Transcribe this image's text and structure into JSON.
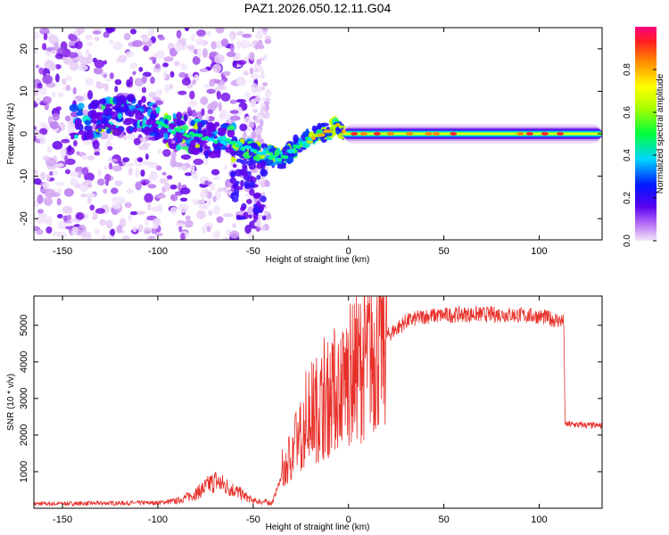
{
  "title": "PAZ1.2026.050.12.11.G04",
  "chart_data": [
    {
      "type": "heatmap",
      "xlabel": "Height of straight line (km)",
      "ylabel": "Frequency (Hz)",
      "xlim": [
        -165,
        133
      ],
      "ylim": [
        -25,
        25
      ],
      "xticks": [
        -150,
        -100,
        -50,
        0,
        50,
        100
      ],
      "yticks": [
        -20,
        -10,
        0,
        10,
        20
      ],
      "colorbar": {
        "label": "Normalized spectral amplitude",
        "range": [
          0,
          1
        ],
        "ticks": [
          "0.0",
          "0.2",
          "0.4",
          "0.6",
          "0.8"
        ],
        "tick_values": [
          0,
          0.2,
          0.4,
          0.6,
          0.8
        ]
      },
      "ridge": {
        "x": [
          -140,
          -110,
          -95,
          -75,
          -62,
          -50,
          -42,
          -35,
          -28,
          -20,
          -15,
          -10,
          -7,
          0,
          20,
          40,
          60,
          80,
          100,
          120,
          133
        ],
        "y": [
          3,
          5,
          1,
          -1,
          -2,
          -4,
          -5,
          -6,
          -3,
          -1,
          0,
          1,
          2,
          0,
          0,
          0,
          0,
          0,
          0,
          0,
          0
        ]
      }
    },
    {
      "type": "line",
      "xlabel": "Height of straight line (km)",
      "ylabel": "SNR (10 * v/v)",
      "xlim": [
        -165,
        133
      ],
      "ylim": [
        0,
        5800
      ],
      "xticks": [
        -150,
        -100,
        -50,
        0,
        50,
        100
      ],
      "yticks": [
        1000,
        2000,
        3000,
        4000,
        5000
      ],
      "color": "#e8302a",
      "envelope": {
        "x": [
          -165,
          -100,
          -90,
          -80,
          -70,
          -60,
          -50,
          -40,
          -35,
          -30,
          -25,
          -20,
          -10,
          0,
          10,
          20,
          30,
          40,
          60,
          80,
          100,
          113,
          113.5,
          133
        ],
        "y": [
          120,
          150,
          200,
          400,
          750,
          500,
          200,
          150,
          900,
          1500,
          2000,
          2600,
          3000,
          3600,
          4100,
          4700,
          5100,
          5250,
          5300,
          5300,
          5250,
          5100,
          2300,
          2250
        ]
      }
    }
  ]
}
